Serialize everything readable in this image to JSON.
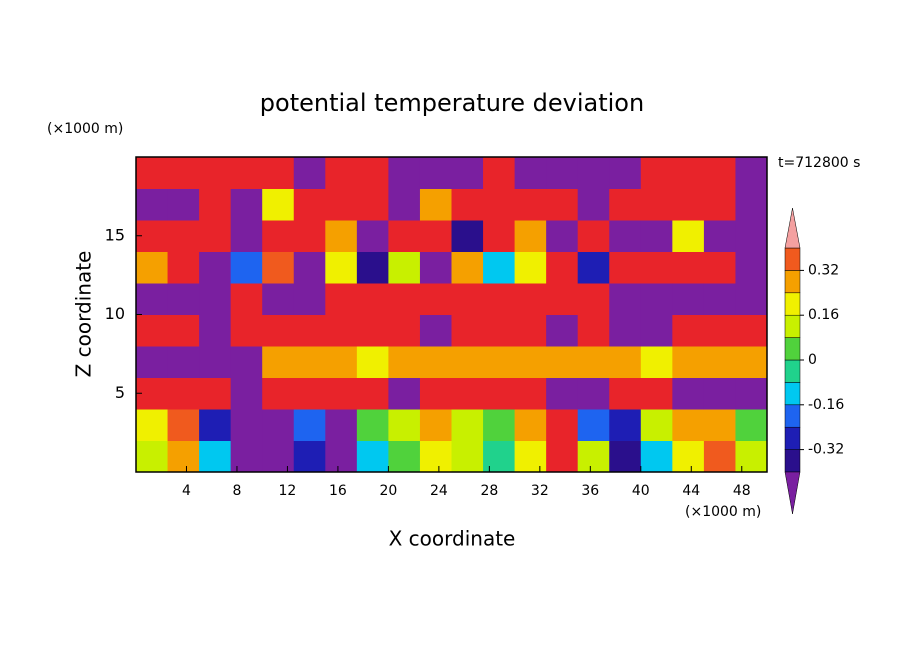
{
  "chart_data": {
    "type": "heatmap",
    "title": "potential temperature deviation",
    "x_label": "X coordinate",
    "y_label": "Z coordinate",
    "x_unit": "(×1000 m)",
    "y_unit": "(×1000 m)",
    "time_label": "t=712800 s",
    "xlim": [
      0,
      50
    ],
    "ylim": [
      0,
      20
    ],
    "xticks": [
      4,
      8,
      12,
      16,
      20,
      24,
      28,
      32,
      36,
      40,
      44,
      48
    ],
    "yticks": [
      5,
      10,
      15
    ],
    "x": [
      1.25,
      3.75,
      6.25,
      8.75,
      11.25,
      13.75,
      16.25,
      18.75,
      21.25,
      23.75,
      26.25,
      28.75,
      31.25,
      33.75,
      36.25,
      38.75,
      41.25,
      43.75,
      46.25,
      48.75
    ],
    "y": [
      1,
      3,
      5,
      7,
      9,
      11,
      13,
      15,
      17,
      19
    ],
    "z": [
      [
        0.1,
        0.3,
        -0.1,
        -0.5,
        -0.5,
        -0.3,
        -0.45,
        -0.1,
        0.05,
        0.2,
        0.1,
        -0.05,
        0.2,
        0.45,
        0.1,
        -0.35,
        -0.1,
        0.2,
        0.35,
        0.1
      ],
      [
        0.2,
        0.35,
        -0.3,
        -0.5,
        -0.5,
        -0.2,
        -0.45,
        0.05,
        0.1,
        0.25,
        0.1,
        0.0,
        0.3,
        0.5,
        -0.2,
        -0.3,
        0.15,
        0.25,
        0.3,
        0.05
      ],
      [
        0.5,
        0.5,
        0.45,
        -0.5,
        0.5,
        0.5,
        0.5,
        0.5,
        -0.5,
        0.5,
        0.5,
        0.5,
        0.5,
        -0.5,
        -0.5,
        0.5,
        0.5,
        -0.5,
        -0.5,
        -0.5
      ],
      [
        -0.5,
        -0.5,
        -0.5,
        -0.5,
        0.25,
        0.3,
        0.25,
        0.2,
        0.25,
        0.3,
        0.3,
        0.25,
        0.3,
        0.3,
        0.25,
        0.3,
        0.2,
        0.25,
        0.3,
        0.3
      ],
      [
        0.5,
        0.5,
        -0.5,
        0.5,
        0.5,
        0.5,
        0.5,
        0.5,
        0.5,
        -0.5,
        0.5,
        0.5,
        0.5,
        -0.5,
        0.5,
        -0.5,
        -0.5,
        0.5,
        0.5,
        0.5
      ],
      [
        -0.5,
        -0.5,
        -0.5,
        0.5,
        -0.5,
        -0.5,
        0.5,
        0.5,
        0.5,
        0.5,
        0.5,
        0.5,
        0.5,
        0.5,
        0.5,
        -0.5,
        -0.5,
        -0.5,
        -0.5,
        -0.5
      ],
      [
        0.3,
        0.5,
        -0.5,
        -0.2,
        0.35,
        -0.5,
        0.2,
        -0.35,
        0.1,
        -0.45,
        0.3,
        -0.1,
        0.2,
        0.5,
        -0.3,
        0.4,
        0.5,
        0.5,
        0.5,
        -0.5
      ],
      [
        0.5,
        0.5,
        0.5,
        -0.5,
        0.5,
        0.5,
        0.3,
        -0.5,
        0.5,
        0.5,
        -0.4,
        0.5,
        0.3,
        -0.5,
        0.5,
        -0.5,
        -0.5,
        0.2,
        -0.5,
        -0.5
      ],
      [
        -0.5,
        -0.5,
        0.5,
        -0.5,
        0.2,
        0.5,
        0.5,
        0.5,
        -0.5,
        0.3,
        0.5,
        0.5,
        0.5,
        0.5,
        -0.5,
        0.5,
        0.5,
        0.5,
        0.5,
        -0.5
      ],
      [
        0.5,
        0.5,
        0.5,
        0.5,
        0.5,
        -0.5,
        0.5,
        0.5,
        -0.5,
        -0.5,
        -0.5,
        0.5,
        -0.5,
        -0.5,
        -0.5,
        -0.5,
        0.5,
        0.5,
        0.5,
        -0.5
      ]
    ],
    "levels": [
      -0.4,
      -0.32,
      -0.24,
      -0.16,
      -0.08,
      0,
      0.08,
      0.16,
      0.24,
      0.32,
      0.4
    ],
    "colors": [
      "#7a1fa0",
      "#2a0f8c",
      "#1e1eb4",
      "#1e64f0",
      "#00c8f0",
      "#20d28c",
      "#50d23c",
      "#c8f000",
      "#f0f000",
      "#f5a000",
      "#f05a1e",
      "#e8242a",
      "#f4a0a0"
    ],
    "colorbar_ticks": [
      -0.32,
      -0.16,
      0,
      0.16,
      0.32
    ]
  }
}
